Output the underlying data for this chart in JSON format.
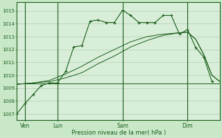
{
  "background_color": "#c8e8c8",
  "plot_bg_color": "#d8eed8",
  "grid_color": "#b0ccb0",
  "line_color": "#1a5c1a",
  "title": "Pression niveau de la mer( hPa )",
  "ylabel_ticks": [
    1007,
    1008,
    1009,
    1010,
    1011,
    1012,
    1013,
    1014,
    1015
  ],
  "ylim": [
    1006.5,
    1015.7
  ],
  "xlim": [
    0,
    75
  ],
  "x_day_labels": [
    {
      "label": "Ven",
      "x": 3
    },
    {
      "label": "Lun",
      "x": 15
    },
    {
      "label": "Sam",
      "x": 39
    },
    {
      "label": "Dim",
      "x": 63
    }
  ],
  "vlines": [
    3,
    15,
    39,
    63
  ],
  "line1_x": [
    0,
    3,
    6,
    9,
    12,
    15,
    18,
    21,
    24,
    27,
    30,
    33,
    36,
    39,
    42,
    45,
    48,
    51,
    54,
    57,
    60,
    63,
    66,
    69,
    72
  ],
  "line1_y": [
    1007.0,
    1007.8,
    1008.5,
    1009.2,
    1009.4,
    1009.4,
    1010.3,
    1012.2,
    1012.3,
    1014.2,
    1014.3,
    1014.1,
    1014.1,
    1015.05,
    1014.65,
    1014.1,
    1014.1,
    1014.1,
    1014.65,
    1014.65,
    1013.2,
    1013.55,
    1012.15,
    1011.4,
    1009.5
  ],
  "line2_x": [
    0,
    75
  ],
  "line2_y": [
    1009.35,
    1009.35
  ],
  "line3_x": [
    0,
    6,
    12,
    18,
    24,
    30,
    36,
    42,
    48,
    54,
    60,
    63,
    66,
    69,
    72,
    75
  ],
  "line3_y": [
    1009.3,
    1009.4,
    1009.5,
    1009.8,
    1010.2,
    1010.9,
    1011.5,
    1012.2,
    1012.7,
    1013.1,
    1013.3,
    1013.35,
    1012.8,
    1011.6,
    1010.0,
    1009.5
  ],
  "line4_x": [
    0,
    6,
    12,
    18,
    24,
    30,
    36,
    42,
    48,
    54,
    60,
    63,
    66,
    69,
    72,
    75
  ],
  "line4_y": [
    1009.3,
    1009.4,
    1009.6,
    1010.1,
    1010.7,
    1011.4,
    1012.0,
    1012.6,
    1013.0,
    1013.2,
    1013.3,
    1013.35,
    1012.8,
    1011.6,
    1010.0,
    1009.5
  ]
}
